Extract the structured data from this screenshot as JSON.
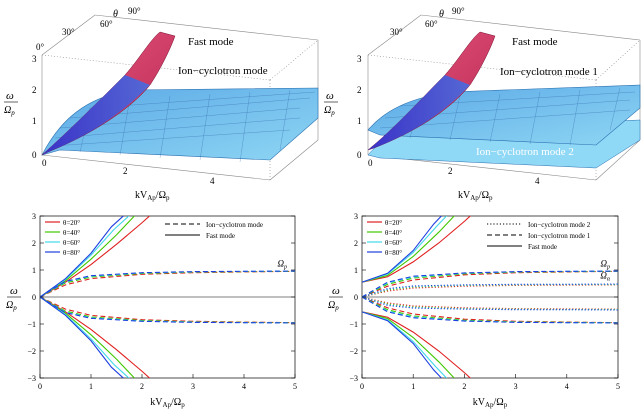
{
  "colors": {
    "fast_surface": "#d63a63",
    "ion_surface": "#74c7ee",
    "ion_surface_dark": "#3f8fd0",
    "blue_edge": "#2233dd",
    "theta20": "#e02020",
    "theta40": "#40c800",
    "theta60": "#40d8e8",
    "theta80": "#1f3fe0"
  },
  "panels_3d": [
    {
      "theta_label": "θ",
      "theta_ticks": [
        "0°",
        "30°",
        "60°",
        "90°"
      ],
      "omega_ticks": [
        "0",
        "1",
        "2",
        "3"
      ],
      "k_ticks": [
        "0",
        "2",
        "4"
      ],
      "y_label_top": "ω",
      "y_label_bottom": "Ω",
      "y_label_sub": "p",
      "x_label_main": "kV",
      "x_label_sub": "Ap",
      "x_label_div": "/Ω",
      "x_label_sub2": "p",
      "fast_label": "Fast mode",
      "ion_label": "Ion−cyclotron mode"
    },
    {
      "theta_label": "θ",
      "theta_ticks": [
        "30°",
        "60°",
        "90°"
      ],
      "omega_ticks": [
        "0",
        "1",
        "2",
        "3"
      ],
      "k_ticks": [
        "0",
        "2",
        "4"
      ],
      "y_label_top": "ω",
      "y_label_bottom": "Ω",
      "y_label_sub": "p",
      "x_label_main": "kV",
      "x_label_sub": "Ap",
      "x_label_div": "/Ω",
      "x_label_sub2": "p",
      "fast_label": "Fast mode",
      "ion_label": "Ion−cyclotron mode 1",
      "ion2_label": "Ion−cyclotron mode 2"
    }
  ],
  "chart_data": [
    {
      "type": "line",
      "panel": "bottom-left",
      "xlabel": "kV_Ap/Ω_p",
      "ylabel": "ω/Ω_p",
      "xlim": [
        0,
        5
      ],
      "ylim": [
        -3,
        3
      ],
      "x_ticks": [
        "0",
        "1",
        "2",
        "3",
        "4",
        "5"
      ],
      "y_ticks": [
        "3",
        "2",
        "1",
        "0",
        "−1",
        "−2",
        "−3"
      ],
      "annotation": "Ω",
      "annotation_sub": "p",
      "legend_theta": [
        {
          "label": "θ=20°",
          "color": "#e02020"
        },
        {
          "label": "θ=40°",
          "color": "#40c800"
        },
        {
          "label": "θ=60°",
          "color": "#40d8e8"
        },
        {
          "label": "θ=80°",
          "color": "#1f3fe0"
        }
      ],
      "legend_modes": [
        {
          "label": "Ion−cyclotron mode",
          "dash": "dashed"
        },
        {
          "label": "Fast mode",
          "dash": "solid"
        }
      ],
      "series": [
        {
          "name": "Fast θ=20°",
          "theta": 20,
          "mode": "fast",
          "x": [
            0,
            0.5,
            1,
            1.5,
            2,
            2.5
          ],
          "y": [
            0,
            0.55,
            1.2,
            1.95,
            2.75,
            3.6
          ]
        },
        {
          "name": "Fast θ=40°",
          "theta": 40,
          "mode": "fast",
          "x": [
            0,
            0.5,
            1,
            1.5,
            1.9
          ],
          "y": [
            0,
            0.6,
            1.4,
            2.3,
            3.1
          ]
        },
        {
          "name": "Fast θ=60°",
          "theta": 60,
          "mode": "fast",
          "x": [
            0,
            0.5,
            1,
            1.45,
            1.8
          ],
          "y": [
            0,
            0.65,
            1.55,
            2.5,
            3.1
          ]
        },
        {
          "name": "Fast θ=80°",
          "theta": 80,
          "mode": "fast",
          "x": [
            0,
            0.5,
            1,
            1.4,
            1.75
          ],
          "y": [
            0,
            0.68,
            1.62,
            2.6,
            3.2
          ]
        },
        {
          "name": "Ion-cyclotron θ=20°",
          "theta": 20,
          "mode": "ion",
          "x": [
            0,
            0.5,
            1,
            2,
            3,
            4,
            5
          ],
          "y": [
            0,
            0.45,
            0.68,
            0.84,
            0.9,
            0.93,
            0.95
          ]
        },
        {
          "name": "Ion-cyclotron θ=40°",
          "theta": 40,
          "mode": "ion",
          "x": [
            0,
            0.5,
            1,
            2,
            3,
            4,
            5
          ],
          "y": [
            0,
            0.52,
            0.74,
            0.87,
            0.92,
            0.94,
            0.95
          ]
        },
        {
          "name": "Ion-cyclotron θ=60°",
          "theta": 60,
          "mode": "ion",
          "x": [
            0,
            0.5,
            1,
            2,
            3,
            4,
            5
          ],
          "y": [
            0,
            0.56,
            0.77,
            0.89,
            0.93,
            0.95,
            0.96
          ]
        },
        {
          "name": "Ion-cyclotron θ=80°",
          "theta": 80,
          "mode": "ion",
          "x": [
            0,
            0.5,
            1,
            2,
            3,
            4,
            5
          ],
          "y": [
            0,
            0.58,
            0.79,
            0.9,
            0.94,
            0.95,
            0.96
          ]
        }
      ]
    },
    {
      "type": "line",
      "panel": "bottom-right",
      "xlabel": "kV_Ap/Ω_p",
      "ylabel": "ω/Ω_p",
      "xlim": [
        0,
        5
      ],
      "ylim": [
        -3,
        3
      ],
      "x_ticks": [
        "0",
        "1",
        "2",
        "3",
        "4",
        "5"
      ],
      "y_ticks": [
        "3",
        "2",
        "1",
        "0",
        "−1",
        "−2",
        "−3"
      ],
      "annotation": "Ω",
      "annotation_sub": "p",
      "annotation2": "Ω",
      "annotation2_sub": "α",
      "legend_theta": [
        {
          "label": "θ=20°",
          "color": "#e02020"
        },
        {
          "label": "θ=40°",
          "color": "#40c800"
        },
        {
          "label": "θ=60°",
          "color": "#40d8e8"
        },
        {
          "label": "θ=80°",
          "color": "#1f3fe0"
        }
      ],
      "legend_modes": [
        {
          "label": "Ion−cyclotron mode 2",
          "dash": "dotted"
        },
        {
          "label": "Ion−cyclotron mode 1",
          "dash": "dashed"
        },
        {
          "label": "Fast mode",
          "dash": "solid"
        }
      ],
      "series": [
        {
          "name": "Fast θ=20°",
          "theta": 20,
          "mode": "fast",
          "x": [
            0,
            0.5,
            1,
            1.5,
            2,
            2.4
          ],
          "y": [
            0.55,
            0.75,
            1.3,
            2.0,
            2.8,
            3.5
          ]
        },
        {
          "name": "Fast θ=40°",
          "theta": 40,
          "mode": "fast",
          "x": [
            0,
            0.5,
            1,
            1.5,
            1.85
          ],
          "y": [
            0.55,
            0.8,
            1.5,
            2.4,
            3.1
          ]
        },
        {
          "name": "Fast θ=60°",
          "theta": 60,
          "mode": "fast",
          "x": [
            0,
            0.5,
            1,
            1.45,
            1.75
          ],
          "y": [
            0.55,
            0.85,
            1.65,
            2.6,
            3.2
          ]
        },
        {
          "name": "Fast θ=80°",
          "theta": 80,
          "mode": "fast",
          "x": [
            0,
            0.5,
            1,
            1.4,
            1.7
          ],
          "y": [
            0.55,
            0.88,
            1.72,
            2.7,
            3.3
          ]
        },
        {
          "name": "Ion-cyclotron 1 θ=20°",
          "theta": 20,
          "mode": "ion1",
          "x": [
            0,
            0.5,
            1,
            2,
            3,
            4,
            5
          ],
          "y": [
            0,
            0.4,
            0.63,
            0.82,
            0.9,
            0.93,
            0.95
          ]
        },
        {
          "name": "Ion-cyclotron 1 θ=40°",
          "theta": 40,
          "mode": "ion1",
          "x": [
            0,
            0.5,
            1,
            2,
            3,
            4,
            5
          ],
          "y": [
            0,
            0.47,
            0.7,
            0.86,
            0.92,
            0.94,
            0.95
          ]
        },
        {
          "name": "Ion-cyclotron 1 θ=60°",
          "theta": 60,
          "mode": "ion1",
          "x": [
            0,
            0.5,
            1,
            2,
            3,
            4,
            5
          ],
          "y": [
            0,
            0.52,
            0.74,
            0.88,
            0.93,
            0.95,
            0.96
          ]
        },
        {
          "name": "Ion-cyclotron 1 θ=80°",
          "theta": 80,
          "mode": "ion1",
          "x": [
            0,
            0.5,
            1,
            2,
            3,
            4,
            5
          ],
          "y": [
            0,
            0.55,
            0.77,
            0.89,
            0.94,
            0.95,
            0.96
          ]
        },
        {
          "name": "Ion-cyclotron 2 θ=20°",
          "theta": 20,
          "mode": "ion2",
          "x": [
            0,
            0.5,
            1,
            2,
            3,
            4,
            5
          ],
          "y": [
            0,
            0.22,
            0.33,
            0.4,
            0.43,
            0.44,
            0.45
          ]
        },
        {
          "name": "Ion-cyclotron 2 θ=40°",
          "theta": 40,
          "mode": "ion2",
          "x": [
            0,
            0.5,
            1,
            2,
            3,
            4,
            5
          ],
          "y": [
            0,
            0.26,
            0.37,
            0.43,
            0.45,
            0.46,
            0.46
          ]
        },
        {
          "name": "Ion-cyclotron 2 θ=60°",
          "theta": 60,
          "mode": "ion2",
          "x": [
            0,
            0.5,
            1,
            2,
            3,
            4,
            5
          ],
          "y": [
            0,
            0.29,
            0.39,
            0.44,
            0.46,
            0.47,
            0.47
          ]
        },
        {
          "name": "Ion-cyclotron 2 θ=80°",
          "theta": 80,
          "mode": "ion2",
          "x": [
            0,
            0.5,
            1,
            2,
            3,
            4,
            5
          ],
          "y": [
            0,
            0.31,
            0.41,
            0.45,
            0.47,
            0.47,
            0.48
          ]
        }
      ]
    }
  ]
}
